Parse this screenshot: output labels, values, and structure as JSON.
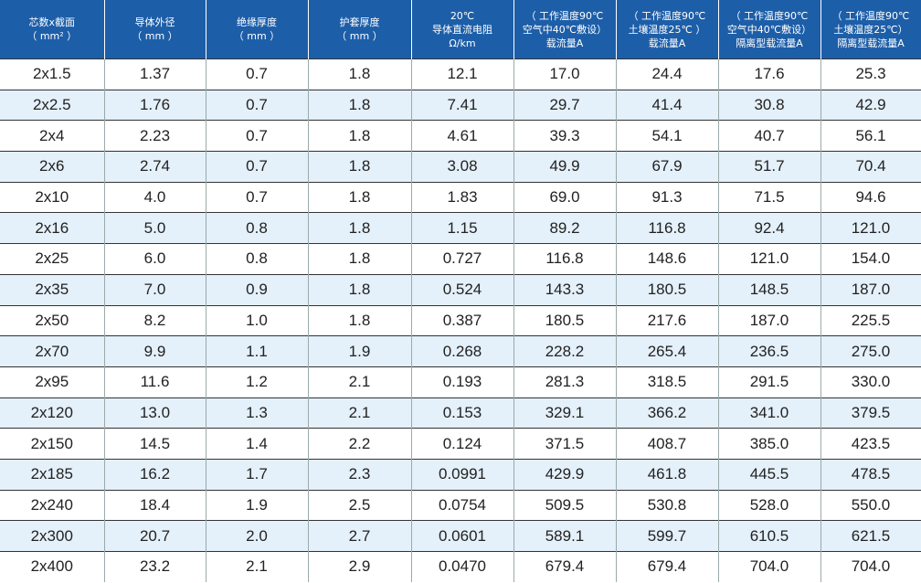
{
  "header": [
    [
      "芯数x截面",
      "（ mm² ）"
    ],
    [
      "导体外径",
      "（ mm ）"
    ],
    [
      "绝缘厚度",
      "（ mm ）"
    ],
    [
      "护套厚度",
      "（ mm ）"
    ],
    [
      "20℃",
      "导体直流电阻",
      "Ω/km"
    ],
    [
      "（ 工作温度90℃",
      "空气中40℃敷设）",
      "载流量A"
    ],
    [
      "（ 工作温度90℃",
      "土壤温度25℃ ）",
      "载流量A"
    ],
    [
      "（ 工作温度90℃",
      "空气中40℃敷设）",
      "隔离型载流量A"
    ],
    [
      "（ 工作温度90℃",
      "土壤温度25℃）",
      "隔离型载流量A"
    ]
  ],
  "rows": [
    [
      "2x1.5",
      "1.37",
      "0.7",
      "1.8",
      "12.1",
      "17.0",
      "24.4",
      "17.6",
      "25.3"
    ],
    [
      "2x2.5",
      "1.76",
      "0.7",
      "1.8",
      "7.41",
      "29.7",
      "41.4",
      "30.8",
      "42.9"
    ],
    [
      "2x4",
      "2.23",
      "0.7",
      "1.8",
      "4.61",
      "39.3",
      "54.1",
      "40.7",
      "56.1"
    ],
    [
      "2x6",
      "2.74",
      "0.7",
      "1.8",
      "3.08",
      "49.9",
      "67.9",
      "51.7",
      "70.4"
    ],
    [
      "2x10",
      "4.0",
      "0.7",
      "1.8",
      "1.83",
      "69.0",
      "91.3",
      "71.5",
      "94.6"
    ],
    [
      "2x16",
      "5.0",
      "0.8",
      "1.8",
      "1.15",
      "89.2",
      "116.8",
      "92.4",
      "121.0"
    ],
    [
      "2x25",
      "6.0",
      "0.8",
      "1.8",
      "0.727",
      "116.8",
      "148.6",
      "121.0",
      "154.0"
    ],
    [
      "2x35",
      "7.0",
      "0.9",
      "1.8",
      "0.524",
      "143.3",
      "180.5",
      "148.5",
      "187.0"
    ],
    [
      "2x50",
      "8.2",
      "1.0",
      "1.8",
      "0.387",
      "180.5",
      "217.6",
      "187.0",
      "225.5"
    ],
    [
      "2x70",
      "9.9",
      "1.1",
      "1.9",
      "0.268",
      "228.2",
      "265.4",
      "236.5",
      "275.0"
    ],
    [
      "2x95",
      "11.6",
      "1.2",
      "2.1",
      "0.193",
      "281.3",
      "318.5",
      "291.5",
      "330.0"
    ],
    [
      "2x120",
      "13.0",
      "1.3",
      "2.1",
      "0.153",
      "329.1",
      "366.2",
      "341.0",
      "379.5"
    ],
    [
      "2x150",
      "14.5",
      "1.4",
      "2.2",
      "0.124",
      "371.5",
      "408.7",
      "385.0",
      "423.5"
    ],
    [
      "2x185",
      "16.2",
      "1.7",
      "2.3",
      "0.0991",
      "429.9",
      "461.8",
      "445.5",
      "478.5"
    ],
    [
      "2x240",
      "18.4",
      "1.9",
      "2.5",
      "0.0754",
      "509.5",
      "530.8",
      "528.0",
      "550.0"
    ],
    [
      "2x300",
      "20.7",
      "2.0",
      "2.7",
      "0.0601",
      "589.1",
      "599.7",
      "610.5",
      "621.5"
    ],
    [
      "2x400",
      "23.2",
      "2.1",
      "2.9",
      "0.0470",
      "679.4",
      "679.4",
      "704.0",
      "704.0"
    ]
  ]
}
